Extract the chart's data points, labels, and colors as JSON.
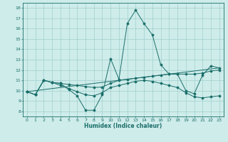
{
  "xlabel": "Humidex (Indice chaleur)",
  "background_color": "#ceecea",
  "grid_color": "#a0d0ce",
  "line_color": "#1a6e6a",
  "xlim": [
    -0.5,
    23.5
  ],
  "ylim": [
    7.5,
    18.5
  ],
  "xticks": [
    0,
    1,
    2,
    3,
    4,
    5,
    6,
    7,
    8,
    9,
    10,
    11,
    12,
    13,
    14,
    15,
    16,
    17,
    18,
    19,
    20,
    21,
    22,
    23
  ],
  "yticks": [
    8,
    9,
    10,
    11,
    12,
    13,
    14,
    15,
    16,
    17,
    18
  ],
  "line1_x": [
    0,
    1,
    2,
    3,
    4,
    5,
    6,
    7,
    8,
    9,
    10,
    11,
    12,
    13,
    14,
    15,
    16,
    17,
    18,
    19,
    20,
    21,
    22,
    23
  ],
  "line1_y": [
    9.9,
    9.6,
    11.0,
    10.8,
    10.7,
    10.1,
    9.5,
    8.1,
    8.1,
    9.6,
    13.1,
    11.1,
    16.5,
    17.8,
    16.5,
    15.4,
    12.5,
    11.6,
    11.6,
    10.0,
    9.7,
    11.5,
    12.4,
    12.2
  ],
  "line2_x": [
    0,
    1,
    2,
    3,
    4,
    5,
    6,
    7,
    8,
    9,
    10,
    11,
    12,
    13,
    14,
    15,
    16,
    17,
    18,
    19,
    20,
    21,
    22,
    23
  ],
  "line2_y": [
    9.9,
    9.6,
    11.0,
    10.8,
    10.7,
    10.6,
    10.5,
    10.4,
    10.3,
    10.35,
    10.7,
    11.0,
    11.1,
    11.2,
    11.3,
    11.4,
    11.5,
    11.6,
    11.6,
    11.6,
    11.6,
    11.7,
    11.9,
    12.0
  ],
  "line3_x": [
    0,
    1,
    2,
    3,
    4,
    5,
    6,
    7,
    8,
    9,
    10,
    11,
    12,
    13,
    14,
    15,
    16,
    17,
    18,
    19,
    20,
    21,
    22,
    23
  ],
  "line3_y": [
    9.9,
    9.6,
    11.0,
    10.8,
    10.5,
    10.2,
    9.9,
    9.6,
    9.5,
    9.8,
    10.3,
    10.5,
    10.7,
    10.9,
    11.0,
    10.9,
    10.7,
    10.5,
    10.3,
    9.8,
    9.4,
    9.3,
    9.4,
    9.5
  ],
  "line4_x": [
    0,
    23
  ],
  "line4_y": [
    9.9,
    12.2
  ]
}
